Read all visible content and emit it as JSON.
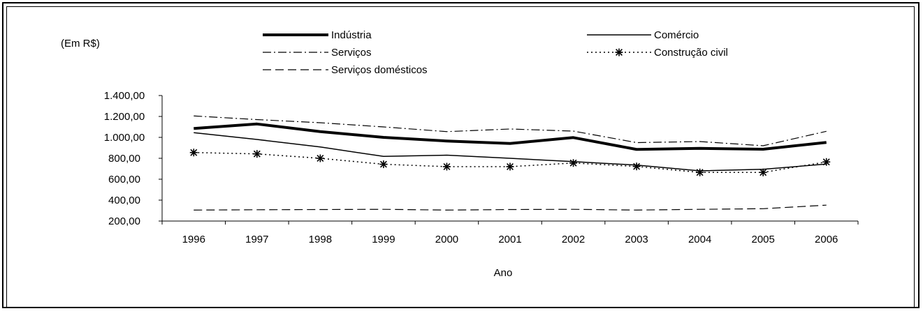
{
  "chart_data": {
    "type": "line",
    "unit_label": "(Em R$)",
    "xlabel": "Ano",
    "ylabel": "",
    "categories": [
      "1996",
      "1997",
      "1998",
      "1999",
      "2000",
      "2001",
      "2002",
      "2003",
      "2004",
      "2005",
      "2006"
    ],
    "ylim": [
      200,
      1400
    ],
    "yticks": [
      200,
      400,
      600,
      800,
      1000,
      1200,
      1400
    ],
    "ytick_labels": [
      "200,00",
      "400,00",
      "600,00",
      "800,00",
      "1.000,00",
      "1.200,00",
      "1.400,00"
    ],
    "grid": false,
    "legend_position": "top",
    "series": [
      {
        "name": "Indústria",
        "style": "thick-solid",
        "color": "#000000",
        "values": [
          1085,
          1128,
          1055,
          1000,
          965,
          942,
          998,
          885,
          895,
          887,
          952
        ]
      },
      {
        "name": "Comércio",
        "style": "solid",
        "color": "#000000",
        "values": [
          1045,
          980,
          908,
          818,
          830,
          800,
          768,
          735,
          680,
          695,
          745
        ]
      },
      {
        "name": "Serviços",
        "style": "dash-dot",
        "color": "#000000",
        "values": [
          1205,
          1170,
          1140,
          1100,
          1055,
          1080,
          1060,
          950,
          960,
          920,
          1058
        ]
      },
      {
        "name": "Construção civil",
        "style": "dotted-star",
        "color": "#000000",
        "values": [
          855,
          842,
          800,
          743,
          720,
          720,
          755,
          722,
          665,
          665,
          765
        ]
      },
      {
        "name": "Serviços domésticos",
        "style": "dashed",
        "color": "#000000",
        "values": [
          305,
          308,
          310,
          312,
          305,
          310,
          312,
          305,
          312,
          318,
          352
        ]
      }
    ]
  }
}
